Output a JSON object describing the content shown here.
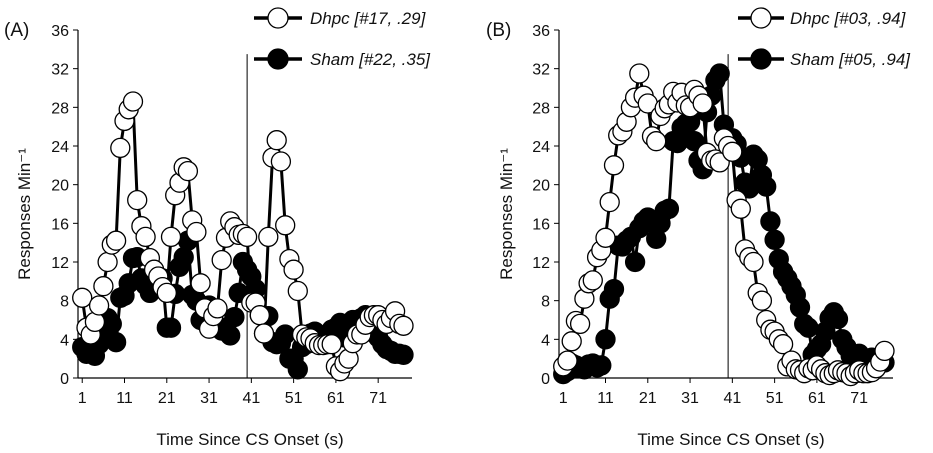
{
  "chart_data": [
    {
      "type": "line",
      "panel_label": "(A)",
      "xlabel": "Time Since CS Onset (s)",
      "ylabel": "Responses Min⁻¹",
      "xlim": [
        0,
        79
      ],
      "ylim": [
        0,
        36
      ],
      "x_ticks": [
        1,
        11,
        21,
        31,
        41,
        51,
        61,
        71
      ],
      "y_ticks": [
        0,
        4,
        8,
        12,
        16,
        20,
        24,
        28,
        32,
        36
      ],
      "reference_line_x": 40,
      "legend_position": "top-right",
      "series": [
        {
          "name": "Dhpc [#17, .29]",
          "marker": "open-circle",
          "color": "#000000",
          "x": [
            1,
            2,
            3,
            4,
            5,
            6,
            7,
            8,
            9,
            10,
            11,
            12,
            13,
            14,
            15,
            16,
            17,
            18,
            19,
            20,
            21,
            22,
            23,
            24,
            25,
            26,
            27,
            28,
            29,
            30,
            31,
            32,
            33,
            34,
            35,
            36,
            37,
            38,
            39,
            40,
            41,
            42,
            43,
            44,
            45,
            46,
            47,
            48,
            49,
            50,
            51,
            52,
            53,
            54,
            55,
            56,
            57,
            58,
            59,
            60,
            61,
            62,
            63,
            64,
            65,
            66,
            67,
            68,
            69,
            70,
            71,
            72,
            73,
            74,
            75,
            76,
            77
          ],
          "values": [
            8.3,
            5.2,
            4.5,
            5.8,
            7.5,
            9.5,
            12,
            13.8,
            14.2,
            23.8,
            26.6,
            27.8,
            28.6,
            18.4,
            15.7,
            14.6,
            12.4,
            11.2,
            10.5,
            9.4,
            8.8,
            14.6,
            18.9,
            20.2,
            21.8,
            21.4,
            16.3,
            15.1,
            9.8,
            7.2,
            5.1,
            6.4,
            7.2,
            12.2,
            14.5,
            16.2,
            15.6,
            14.8,
            14.9,
            14.6,
            7.8,
            7.8,
            6.5,
            4.6,
            14.6,
            22.8,
            24.6,
            22.4,
            15.8,
            12.3,
            11.2,
            9.0,
            4.5,
            4.2,
            4.1,
            3.6,
            3.4,
            3.4,
            3.5,
            3.5,
            1.2,
            0.7,
            1.5,
            2.0,
            3.6,
            4.5,
            4.5,
            5.5,
            6.3,
            6.5,
            6.5,
            6.0,
            5.6,
            6.2,
            6.9,
            5.6,
            5.4
          ]
        },
        {
          "name": "Sham [#22, .35]",
          "marker": "filled-circle",
          "color": "#000000",
          "x": [
            1,
            2,
            3,
            4,
            5,
            6,
            7,
            8,
            9,
            10,
            11,
            12,
            13,
            14,
            15,
            16,
            17,
            18,
            19,
            20,
            21,
            22,
            23,
            24,
            25,
            26,
            27,
            28,
            29,
            30,
            31,
            32,
            33,
            34,
            35,
            36,
            37,
            38,
            39,
            40,
            41,
            42,
            43,
            44,
            45,
            46,
            47,
            48,
            49,
            50,
            51,
            52,
            53,
            54,
            55,
            56,
            57,
            58,
            59,
            60,
            61,
            62,
            63,
            64,
            65,
            66,
            67,
            68,
            69,
            70,
            71,
            72,
            73,
            74,
            75,
            76,
            77
          ],
          "values": [
            3.2,
            2.5,
            2.8,
            2.3,
            3.5,
            4.8,
            6.2,
            5.6,
            3.7,
            8.3,
            8.5,
            9.8,
            12.4,
            12.5,
            10.3,
            9.6,
            8.8,
            9.2,
            10.5,
            10.3,
            5.2,
            5.2,
            8.7,
            11.5,
            12.5,
            14.2,
            8.6,
            8.0,
            6.0,
            5.8,
            7.5,
            6.8,
            5.3,
            4.9,
            5.2,
            4.4,
            6.3,
            8.8,
            12.0,
            11.2,
            10.5,
            9.2,
            6.5,
            4.6,
            6.4,
            3.7,
            3.5,
            3.6,
            4.5,
            2.0,
            2.0,
            0.9,
            3.2,
            3.5,
            4.6,
            4.8,
            3.6,
            3.5,
            3.8,
            5.0,
            5.2,
            5.7,
            4.2,
            5.3,
            6.0,
            5.8,
            6.2,
            6.5,
            4.8,
            5.0,
            4.2,
            3.5,
            3.0,
            2.8,
            2.5,
            2.5,
            2.4
          ]
        }
      ]
    },
    {
      "type": "line",
      "panel_label": "(B)",
      "xlabel": "Time Since CS Onset (s)",
      "ylabel": "Responses Min⁻¹",
      "xlim": [
        0,
        79
      ],
      "ylim": [
        0,
        36
      ],
      "x_ticks": [
        1,
        11,
        21,
        31,
        41,
        51,
        61,
        71
      ],
      "y_ticks": [
        0,
        4,
        8,
        12,
        16,
        20,
        24,
        28,
        32,
        36
      ],
      "reference_line_x": 40,
      "legend_position": "top-right",
      "series": [
        {
          "name": "Dhpc [#03, .94]",
          "marker": "open-circle",
          "color": "#000000",
          "x": [
            1,
            2,
            3,
            4,
            5,
            6,
            7,
            8,
            9,
            10,
            11,
            12,
            13,
            14,
            15,
            16,
            17,
            18,
            19,
            20,
            21,
            22,
            23,
            24,
            25,
            26,
            27,
            28,
            29,
            30,
            31,
            32,
            33,
            34,
            35,
            36,
            37,
            38,
            39,
            40,
            41,
            42,
            43,
            44,
            45,
            46,
            47,
            48,
            49,
            50,
            51,
            52,
            53,
            54,
            55,
            56,
            57,
            58,
            59,
            60,
            61,
            62,
            63,
            64,
            65,
            66,
            67,
            68,
            69,
            70,
            71,
            72,
            73,
            74,
            75,
            76,
            77
          ],
          "values": [
            1.2,
            1.8,
            3.8,
            5.9,
            5.6,
            8.2,
            9.8,
            10.1,
            12.5,
            13.2,
            14.5,
            18.2,
            22.0,
            25.1,
            25.5,
            26.5,
            28.0,
            29.0,
            31.5,
            29.2,
            28.4,
            25.0,
            24.5,
            27.1,
            27.9,
            28.3,
            29.6,
            28.5,
            29.5,
            28.2,
            28.0,
            29.8,
            29.2,
            28.4,
            23.3,
            22.5,
            22.6,
            22.3,
            24.8,
            24.0,
            23.4,
            18.4,
            17.5,
            13.3,
            12.5,
            12.0,
            8.8,
            8.0,
            6.0,
            5.0,
            4.8,
            4.0,
            3.5,
            1.2,
            1.8,
            0.9,
            0.8,
            0.5,
            1.0,
            0.8,
            1.3,
            0.9,
            0.5,
            0.3,
            0.5,
            0.8,
            0.6,
            0.5,
            0.2,
            0.5,
            0.8,
            0.5,
            0.5,
            0.6,
            1.0,
            1.7,
            2.8
          ]
        },
        {
          "name": "Sham [#05, .94]",
          "marker": "filled-circle",
          "color": "#000000",
          "x": [
            1,
            2,
            3,
            4,
            5,
            6,
            7,
            8,
            9,
            10,
            11,
            12,
            13,
            14,
            15,
            16,
            17,
            18,
            19,
            20,
            21,
            22,
            23,
            24,
            25,
            26,
            27,
            28,
            29,
            30,
            31,
            32,
            33,
            34,
            35,
            36,
            37,
            38,
            39,
            40,
            41,
            42,
            43,
            44,
            45,
            46,
            47,
            48,
            49,
            50,
            51,
            52,
            53,
            54,
            55,
            56,
            57,
            58,
            59,
            60,
            61,
            62,
            63,
            64,
            65,
            66,
            67,
            68,
            69,
            70,
            71,
            72,
            73,
            74,
            75,
            76,
            77
          ],
          "values": [
            0.4,
            0.7,
            1.5,
            1.3,
            1.0,
            0.9,
            1.4,
            1.5,
            1.1,
            1.3,
            4.0,
            8.2,
            9.2,
            13.7,
            13.6,
            14.2,
            14.6,
            12.0,
            15.5,
            16.2,
            16.6,
            16.1,
            14.4,
            16.0,
            17.3,
            17.5,
            24.5,
            24.3,
            25.9,
            26.3,
            26.5,
            24.5,
            22.5,
            21.6,
            27.5,
            29.2,
            30.8,
            31.5,
            26.2,
            24.4,
            24.8,
            24.2,
            22.8,
            20.2,
            19.6,
            23.1,
            22.6,
            21.0,
            19.8,
            16.2,
            14.3,
            12.3,
            11.0,
            10.3,
            9.5,
            8.6,
            7.3,
            5.6,
            5.2,
            2.4,
            3.0,
            3.5,
            4.8,
            6.2,
            6.8,
            6.1,
            4.0,
            3.2,
            2.3,
            2.0,
            2.5,
            2.0,
            1.8,
            2.1,
            1.7,
            1.5,
            1.6
          ]
        }
      ]
    }
  ]
}
